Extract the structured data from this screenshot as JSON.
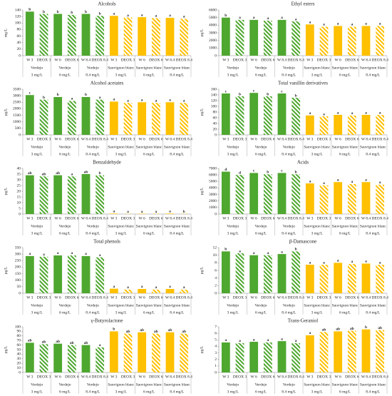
{
  "style": {
    "bar_colors": [
      "#4ea72e",
      "#4ea72e",
      "#4ea72e",
      "#4ea72e",
      "#4ea72e",
      "#4ea72e",
      "#ffc000",
      "#ffc000",
      "#ffc000",
      "#ffc000",
      "#ffc000",
      "#ffc000"
    ],
    "hatched": [
      false,
      true,
      false,
      true,
      false,
      true,
      false,
      true,
      false,
      true,
      false,
      true
    ]
  },
  "chart_data": [
    {
      "type": "bar",
      "title": "Alcohols",
      "y_label": "mg/L",
      "ylim": [
        0,
        140
      ],
      "yticks": [
        0,
        20,
        40,
        60,
        80,
        100,
        120,
        140
      ],
      "categories": [
        "W 3",
        "DEOX 3",
        "W 6",
        "DEOX 6",
        "W 8.4",
        "DEOX 8.4",
        "W 3",
        "DEOX 3",
        "W 6",
        "DEOX 6",
        "W 8.4",
        "DEOX 8.4"
      ],
      "groups": [
        {
          "variety": "Verdejo",
          "dose": "3 mg/L"
        },
        {
          "variety": "Verdejo",
          "dose": "6 mg/L"
        },
        {
          "variety": "Verdejo",
          "dose": "8.4 mg/L"
        },
        {
          "variety": "Sauvignon blanc",
          "dose": "3 mg/L"
        },
        {
          "variety": "Sauvignon blanc",
          "dose": "6 mg/L"
        },
        {
          "variety": "Sauvignon blanc",
          "dose": "8.4 mg/L"
        }
      ],
      "values": [
        135,
        128,
        128,
        125,
        128,
        122,
        122,
        117,
        118,
        115,
        116,
        113
      ],
      "letters": [
        "b",
        "b",
        "b",
        "b",
        "b",
        "b",
        "a",
        "a",
        "a",
        "a",
        "a",
        "a"
      ]
    },
    {
      "type": "bar",
      "title": "Ethyl esters",
      "y_label": "µg/L",
      "ylim": [
        0,
        6000
      ],
      "yticks": [
        0,
        1000,
        2000,
        3000,
        4000,
        5000,
        6000
      ],
      "categories": [
        "W 3",
        "DEOX 3",
        "W 6",
        "DEOX 6",
        "W 8.4",
        "DEOX 8.4",
        "W 3",
        "DEOX 3",
        "W 6",
        "DEOX 6",
        "W 8.4",
        "DEOX 8.4"
      ],
      "groups": [
        {
          "variety": "Verdejo",
          "dose": "3 mg/L"
        },
        {
          "variety": "Verdejo",
          "dose": "6 mg/L"
        },
        {
          "variety": "Verdejo",
          "dose": "8.4 mg/L"
        },
        {
          "variety": "Sauvignon blanc",
          "dose": "3 mg/L"
        },
        {
          "variety": "Sauvignon blanc",
          "dose": "6 mg/L"
        },
        {
          "variety": "Sauvignon blanc",
          "dose": "8.4 mg/L"
        }
      ],
      "values": [
        5000,
        4700,
        4700,
        4600,
        4700,
        4500,
        4100,
        3800,
        3900,
        3800,
        3900,
        3900
      ],
      "letters": [
        "b",
        "a",
        "a",
        "a",
        "a",
        "a",
        "a",
        "a",
        "a",
        "a",
        "a",
        "a"
      ]
    },
    {
      "type": "bar",
      "title": "Alcohol acetates",
      "y_label": "µg/L",
      "ylim": [
        0,
        3500
      ],
      "yticks": [
        0,
        500,
        1000,
        1500,
        2000,
        2500,
        3000,
        3500
      ],
      "categories": [
        "W 3",
        "DEOX 3",
        "W 6",
        "DEOX 6",
        "W 8.4",
        "DEOX 8.4",
        "W 3",
        "DEOX 3",
        "W 6",
        "DEOX 6",
        "W 8.4",
        "DEOX 8.4"
      ],
      "groups": [
        {
          "variety": "Verdejo",
          "dose": "3 mg/L"
        },
        {
          "variety": "Verdejo",
          "dose": "6 mg/L"
        },
        {
          "variety": "Verdejo",
          "dose": "8.4 mg/L"
        },
        {
          "variety": "Sauvignon blanc",
          "dose": "3 mg/L"
        },
        {
          "variety": "Sauvignon blanc",
          "dose": "6 mg/L"
        },
        {
          "variety": "Sauvignon blanc",
          "dose": "8.4 mg/L"
        }
      ],
      "values": [
        3050,
        2700,
        2900,
        2600,
        2900,
        2700,
        2550,
        2450,
        2500,
        2450,
        2500,
        2450
      ],
      "letters": [
        "c",
        "b",
        "b",
        "a",
        "b",
        "a",
        "a",
        "a",
        "a",
        "a",
        "a",
        "a"
      ]
    },
    {
      "type": "bar",
      "title": "Total vanillin derivatives",
      "y_label": "µg/L",
      "ylim": [
        0,
        160
      ],
      "yticks": [
        0,
        20,
        40,
        60,
        80,
        100,
        120,
        140,
        160
      ],
      "categories": [
        "W 3",
        "DEOX 3",
        "W 6",
        "DEOX 6",
        "W 8.4",
        "DEOX 8.4",
        "W 3",
        "DEOX 3",
        "W 6",
        "DEOX 6",
        "W 8.4",
        "DEOX 8.4"
      ],
      "groups": [
        {
          "variety": "Verdejo",
          "dose": "3 mg/L"
        },
        {
          "variety": "Verdejo",
          "dose": "6 mg/L"
        },
        {
          "variety": "Verdejo",
          "dose": "8.4 mg/L"
        },
        {
          "variety": "Sauvignon blanc",
          "dose": "3 mg/L"
        },
        {
          "variety": "Sauvignon blanc",
          "dose": "6 mg/L"
        },
        {
          "variety": "Sauvignon blanc",
          "dose": "8.4 mg/L"
        }
      ],
      "values": [
        145,
        135,
        147,
        135,
        145,
        130,
        68,
        65,
        70,
        68,
        70,
        70
      ],
      "letters": [
        "c",
        "b",
        "c",
        "b",
        "c",
        "b",
        "a",
        "a",
        "a",
        "a",
        "a",
        "a"
      ]
    },
    {
      "type": "bar",
      "title": "Benzaldehyde",
      "y_label": "µg/L",
      "ylim": [
        0,
        40
      ],
      "yticks": [
        0,
        5,
        10,
        15,
        20,
        25,
        30,
        35,
        40
      ],
      "categories": [
        "W 3",
        "DEOX 3",
        "W 6",
        "DEOX 6",
        "W 8.4",
        "DEOX 8.4",
        "W 3",
        "DEOX 3",
        "W 6",
        "DEOX 6",
        "W 8.4",
        "DEOX 8.4"
      ],
      "groups": [
        {
          "variety": "Verdejo",
          "dose": "3 mg/L"
        },
        {
          "variety": "Verdejo",
          "dose": "6 mg/L"
        },
        {
          "variety": "Verdejo",
          "dose": "8.4 mg/L"
        },
        {
          "variety": "Sauvignon blanc",
          "dose": "3 mg/L"
        },
        {
          "variety": "Sauvignon blanc",
          "dose": "6 mg/L"
        },
        {
          "variety": "Sauvignon blanc",
          "dose": "8.4 mg/L"
        }
      ],
      "values": [
        34,
        33,
        34,
        33,
        35,
        34,
        0.4,
        0.3,
        0.3,
        0.3,
        0.4,
        0.3
      ],
      "letters": [
        "ab",
        "ab",
        "ab",
        "a",
        "ab",
        "b",
        "a",
        "a",
        "a",
        "a",
        "a",
        "b"
      ]
    },
    {
      "type": "bar",
      "title": "Acids",
      "y_label": "µg/L",
      "ylim": [
        0,
        7000
      ],
      "yticks": [
        0,
        1000,
        2000,
        3000,
        4000,
        5000,
        6000,
        7000
      ],
      "categories": [
        "W 3",
        "DEOX 3",
        "W 6",
        "DEOX 6",
        "W 8.4",
        "DEOX 8.4",
        "W 3",
        "DEOX 3",
        "W 6",
        "DEOX 6",
        "W 8.4",
        "DEOX 8.4"
      ],
      "groups": [
        {
          "variety": "Verdejo",
          "dose": "3 mg/L"
        },
        {
          "variety": "Verdejo",
          "dose": "6 mg/L"
        },
        {
          "variety": "Verdejo",
          "dose": "8.4 mg/L"
        },
        {
          "variety": "Sauvignon blanc",
          "dose": "3 mg/L"
        },
        {
          "variety": "Sauvignon blanc",
          "dose": "6 mg/L"
        },
        {
          "variety": "Sauvignon blanc",
          "dose": "8.4 mg/L"
        }
      ],
      "values": [
        6500,
        6000,
        6300,
        6100,
        6300,
        6100,
        4700,
        4400,
        4900,
        4600,
        4900,
        4500
      ],
      "letters": [
        "d",
        "d",
        "c",
        "b",
        "c",
        "b",
        "a",
        "a",
        "a",
        "a",
        "a",
        "a"
      ]
    },
    {
      "type": "bar",
      "title": "Total phenols",
      "y_label": "µg/L",
      "ylim": [
        0,
        350
      ],
      "yticks": [
        0,
        50,
        100,
        150,
        200,
        250,
        300,
        350
      ],
      "categories": [
        "W 3",
        "DEOX 3",
        "W 6",
        "DEOX 6",
        "W 8.4",
        "DEOX 8.4",
        "W 3",
        "DEOX 3",
        "W 6",
        "DEOX 6",
        "W 8.4",
        "DEOX 8.4"
      ],
      "groups": [
        {
          "variety": "Verdejo",
          "dose": "3 mg/L"
        },
        {
          "variety": "Verdejo",
          "dose": "6 mg/L"
        },
        {
          "variety": "Verdejo",
          "dose": "8.4 mg/L"
        },
        {
          "variety": "Sauvignon blanc",
          "dose": "3 mg/L"
        },
        {
          "variety": "Sauvignon blanc",
          "dose": "6 mg/L"
        },
        {
          "variety": "Sauvignon blanc",
          "dose": "8.4 mg/L"
        }
      ],
      "values": [
        285,
        280,
        290,
        290,
        285,
        275,
        35,
        28,
        33,
        28,
        33,
        28
      ],
      "letters": [
        "a",
        "a",
        "a",
        "a",
        "a",
        "a",
        "a",
        "a",
        "a",
        "a",
        "a",
        "a"
      ]
    },
    {
      "type": "bar",
      "title": "β-Damascone",
      "y_label": "µg/L",
      "ylim": [
        0,
        12
      ],
      "yticks": [
        0,
        2,
        4,
        6,
        8,
        10,
        12
      ],
      "categories": [
        "W 3",
        "DEOX 3",
        "W 6",
        "DEOX 6",
        "W 8.4",
        "DEOX 8.4",
        "W 3",
        "DEOX 3",
        "W 6",
        "DEOX 6",
        "W 8.4",
        "DEOX 8.4"
      ],
      "groups": [
        {
          "variety": "Verdejo",
          "dose": "3 mg/L"
        },
        {
          "variety": "Verdejo",
          "dose": "6 mg/L"
        },
        {
          "variety": "Verdejo",
          "dose": "8.4 mg/L"
        },
        {
          "variety": "Sauvignon blanc",
          "dose": "3 mg/L"
        },
        {
          "variety": "Sauvignon blanc",
          "dose": "6 mg/L"
        },
        {
          "variety": "Sauvignon blanc",
          "dose": "8.4 mg/L"
        }
      ],
      "values": [
        11,
        10.5,
        10,
        10,
        10.3,
        11,
        7.5,
        7.5,
        8,
        7.7,
        7.8,
        7.5
      ],
      "letters": [
        "b",
        "a",
        "a",
        "a",
        "a",
        "b",
        "a",
        "a",
        "a",
        "a",
        "a",
        "a"
      ]
    },
    {
      "type": "bar",
      "title": "γ-Butyrolactone",
      "y_label": "µg/L",
      "ylim": [
        0,
        100
      ],
      "yticks": [
        0,
        10,
        20,
        30,
        40,
        50,
        60,
        70,
        80,
        90,
        100
      ],
      "categories": [
        "W 3",
        "DEOX 3",
        "W 6",
        "DEOX 6",
        "W 8.4",
        "DEOX 8.4",
        "W 3",
        "DEOX 3",
        "W 6",
        "DEOX 6",
        "W 8.4",
        "DEOX 8.4"
      ],
      "groups": [
        {
          "variety": "Verdejo",
          "dose": "3 mg/L"
        },
        {
          "variety": "Verdejo",
          "dose": "6 mg/L"
        },
        {
          "variety": "Verdejo",
          "dose": "8.4 mg/L"
        },
        {
          "variety": "Sauvignon blanc",
          "dose": "3 mg/L"
        },
        {
          "variety": "Sauvignon blanc",
          "dose": "6 mg/L"
        },
        {
          "variety": "Sauvignon blanc",
          "dose": "8.4 mg/L"
        }
      ],
      "values": [
        65,
        62,
        63,
        60,
        60,
        55,
        90,
        85,
        88,
        85,
        88,
        85
      ],
      "letters": [
        "ab",
        "ab",
        "ab",
        "ab",
        "ab",
        "a",
        "b",
        "ab",
        "ab",
        "ab",
        "ab",
        "ab"
      ]
    },
    {
      "type": "bar",
      "title": "Trans-Geraniol",
      "y_label": "µg/L",
      "ylim": [
        0,
        7
      ],
      "yticks": [
        0,
        1,
        2,
        3,
        4,
        5,
        6,
        7
      ],
      "categories": [
        "W 3",
        "DEOX 3",
        "W 6",
        "DEOX 6",
        "W 8.4",
        "DEOX 8.4",
        "W 3",
        "DEOX 3",
        "W 6",
        "DEOX 6",
        "W 8.4",
        "DEOX 8.4"
      ],
      "groups": [
        {
          "variety": "Verdejo",
          "dose": "3 mg/L"
        },
        {
          "variety": "Verdejo",
          "dose": "6 mg/L"
        },
        {
          "variety": "Verdejo",
          "dose": "8.4 mg/L"
        },
        {
          "variety": "Sauvignon blanc",
          "dose": "3 mg/L"
        },
        {
          "variety": "Sauvignon blanc",
          "dose": "6 mg/L"
        },
        {
          "variety": "Sauvignon blanc",
          "dose": "8.4 mg/L"
        }
      ],
      "values": [
        4.6,
        4.5,
        4.7,
        4.6,
        4.8,
        4.5,
        5.7,
        6.2,
        6.3,
        6.4,
        6.6,
        6.5
      ],
      "letters": [
        "a",
        "a",
        "a",
        "a",
        "a",
        "a",
        "a",
        "ab",
        "ab",
        "ab",
        "b",
        "ab"
      ]
    }
  ]
}
